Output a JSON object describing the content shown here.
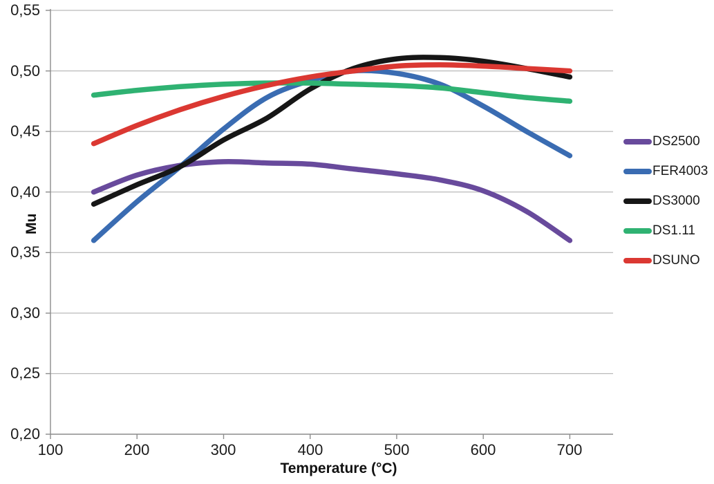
{
  "page": {
    "background": "#ffffff"
  },
  "style": {
    "gridline_color": "#a9a9a9",
    "axis_color": "#8c8c8c",
    "tick_label_color": "#1c1c1c",
    "line_width": 7.5
  },
  "chart_data": {
    "type": "line",
    "title": "",
    "xlabel": "Temperature (°C)",
    "ylabel": "Mu",
    "xlim": [
      100,
      750
    ],
    "ylim": [
      0.2,
      0.55
    ],
    "grid": "horizontal",
    "legend_position": "right",
    "smoothed": true,
    "decimal_separator": ",",
    "x_ticks": {
      "values": [
        100,
        200,
        300,
        400,
        500,
        600,
        700
      ],
      "labels": [
        "100",
        "200",
        "300",
        "400",
        "500",
        "600",
        "700"
      ]
    },
    "y_ticks": {
      "values": [
        0.2,
        0.25,
        0.3,
        0.35,
        0.4,
        0.45,
        0.5,
        0.55
      ],
      "labels": [
        "0,20",
        "0,25",
        "0,30",
        "0,35",
        "0,40",
        "0,45",
        "0,50",
        "0,55"
      ]
    },
    "x": [
      150,
      200,
      250,
      300,
      350,
      400,
      450,
      500,
      550,
      600,
      650,
      700
    ],
    "series": [
      {
        "name": "DS2500",
        "color": "#684a9c",
        "values": [
          0.4,
          0.414,
          0.422,
          0.425,
          0.424,
          0.423,
          0.419,
          0.415,
          0.41,
          0.401,
          0.384,
          0.36
        ]
      },
      {
        "name": "FER4003",
        "color": "#3a6cb2",
        "values": [
          0.36,
          0.392,
          0.421,
          0.452,
          0.478,
          0.492,
          0.5,
          0.498,
          0.489,
          0.471,
          0.45,
          0.43
        ]
      },
      {
        "name": "DS3000",
        "color": "#161616",
        "values": [
          0.39,
          0.406,
          0.421,
          0.443,
          0.461,
          0.485,
          0.502,
          0.51,
          0.511,
          0.508,
          0.502,
          0.495
        ]
      },
      {
        "name": "DS1.11",
        "color": "#2fb272",
        "values": [
          0.48,
          0.484,
          0.487,
          0.489,
          0.49,
          0.49,
          0.489,
          0.488,
          0.486,
          0.482,
          0.478,
          0.475
        ]
      },
      {
        "name": "DSUNO",
        "color": "#db3832",
        "values": [
          0.44,
          0.455,
          0.468,
          0.479,
          0.488,
          0.495,
          0.5,
          0.504,
          0.505,
          0.504,
          0.502,
          0.5
        ]
      }
    ]
  }
}
